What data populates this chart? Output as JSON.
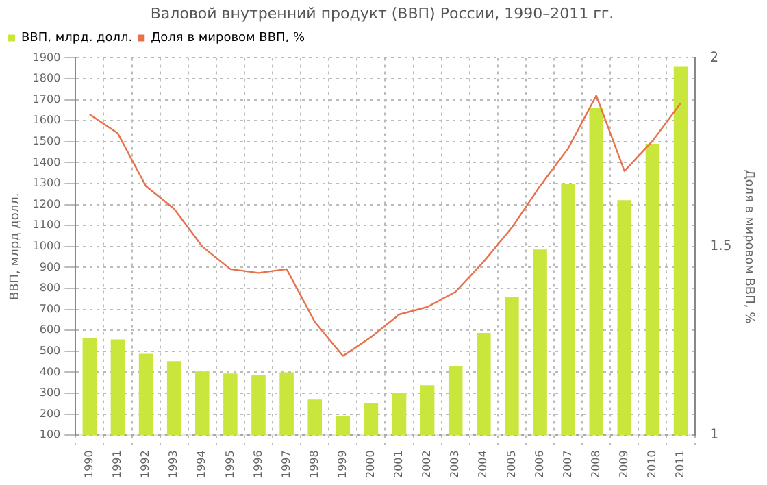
{
  "chart_data": {
    "type": "bar",
    "title": "Валовой внутренний продукт (ВВП) России, 1990–2011 гг.",
    "ylabel": "ВВП, млрд долл.",
    "y2label": "Доля в мировом ВВП, %",
    "categories": [
      "1990",
      "1991",
      "1992",
      "1993",
      "1994",
      "1995",
      "1996",
      "1997",
      "1998",
      "1999",
      "2000",
      "2001",
      "2002",
      "2003",
      "2004",
      "2005",
      "2006",
      "2007",
      "2008",
      "2009",
      "2010",
      "2011"
    ],
    "series": [
      {
        "name": "ВВП, млрд. долл.",
        "color": "#c8e63c",
        "values": [
          563,
          557,
          488,
          453,
          404,
          394,
          388,
          400,
          270,
          192,
          253,
          302,
          339,
          429,
          588,
          761,
          986,
          1298,
          1660,
          1221,
          1490,
          1857
        ]
      },
      {
        "name": "Доля в мировом ВВП, %",
        "type": "line",
        "axis": "y2",
        "color": "#e8704a",
        "values": [
          1.85,
          1.8,
          1.66,
          1.6,
          1.5,
          1.44,
          1.43,
          1.44,
          1.3,
          1.21,
          1.26,
          1.32,
          1.34,
          1.38,
          1.46,
          1.55,
          1.66,
          1.76,
          1.9,
          1.7,
          1.78,
          1.88
        ]
      }
    ],
    "ylim": [
      100,
      1900
    ],
    "yticks": [
      100,
      200,
      300,
      400,
      500,
      600,
      700,
      800,
      900,
      1000,
      1100,
      1200,
      1300,
      1400,
      1500,
      1600,
      1700,
      1800,
      1900
    ],
    "y2lim": [
      1,
      2
    ],
    "y2ticks": [
      1,
      1.5,
      2
    ],
    "grid": true,
    "legend": "top left",
    "marker": "none"
  }
}
